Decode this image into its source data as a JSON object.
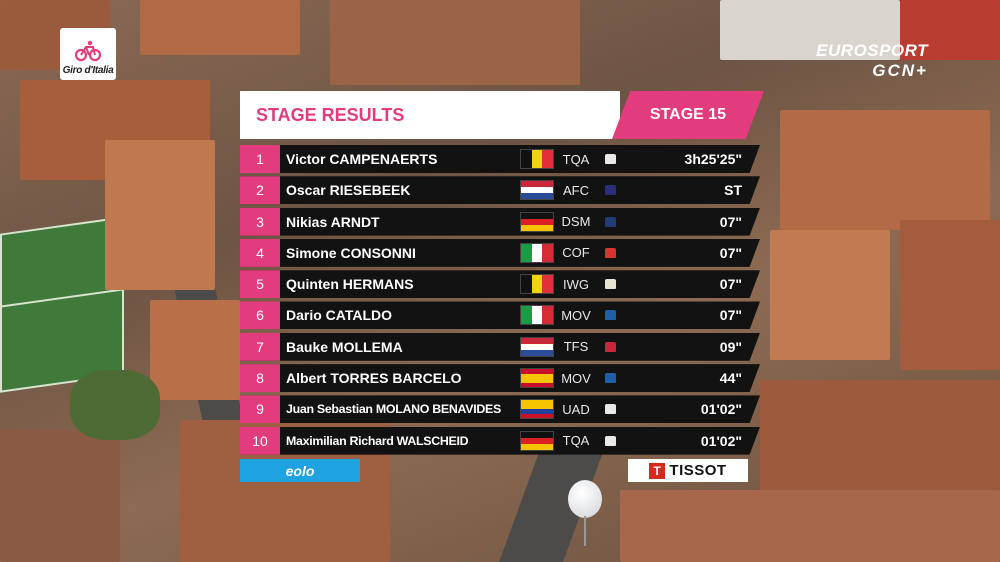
{
  "header": {
    "title": "STAGE RESULTS",
    "stage": "STAGE 15"
  },
  "logos": {
    "event": "Giro d'Italia",
    "broadcaster_line1": "EUROSPORT",
    "broadcaster_line2": "GCN+"
  },
  "colors": {
    "accent_pink": "#e23c7e",
    "row_bg": "#121212",
    "eolo_blue": "#1fa3e0",
    "tissot_red": "#d52b1e"
  },
  "results": [
    {
      "rank": "1",
      "name": "Victor CAMPENAERTS",
      "team": "TQA",
      "time": "3h25'25\"",
      "flag": "belgium",
      "jersey": "#e9e9e9"
    },
    {
      "rank": "2",
      "name": "Oscar RIESEBEEK",
      "team": "AFC",
      "time": "ST",
      "flag": "netherlands",
      "jersey": "#2a2f7a"
    },
    {
      "rank": "3",
      "name": "Nikias ARNDT",
      "team": "DSM",
      "time": "07\"",
      "flag": "germany",
      "jersey": "#203a7a"
    },
    {
      "rank": "4",
      "name": "Simone CONSONNI",
      "team": "COF",
      "time": "07\"",
      "flag": "italy",
      "jersey": "#d8342e"
    },
    {
      "rank": "5",
      "name": "Quinten HERMANS",
      "team": "IWG",
      "time": "07\"",
      "flag": "belgium",
      "jersey": "#e8e4d2"
    },
    {
      "rank": "6",
      "name": "Dario CATALDO",
      "team": "MOV",
      "time": "07\"",
      "flag": "italy",
      "jersey": "#1e5fa8"
    },
    {
      "rank": "7",
      "name": "Bauke MOLLEMA",
      "team": "TFS",
      "time": "09\"",
      "flag": "netherlands",
      "jersey": "#c8283a"
    },
    {
      "rank": "8",
      "name": "Albert TORRES BARCELO",
      "team": "MOV",
      "time": "44\"",
      "flag": "spain",
      "jersey": "#1e5fa8"
    },
    {
      "rank": "9",
      "name": "Juan Sebastian MOLANO BENAVIDES",
      "team": "UAD",
      "time": "01'02\"",
      "flag": "colombia",
      "jersey": "#e9e9e9"
    },
    {
      "rank": "10",
      "name": "Maximilian Richard WALSCHEID",
      "team": "TQA",
      "time": "01'02\"",
      "flag": "germany",
      "jersey": "#e9e9e9"
    }
  ],
  "sponsors": {
    "left": "eolo",
    "right": "TISSOT",
    "right_mark": "T"
  }
}
